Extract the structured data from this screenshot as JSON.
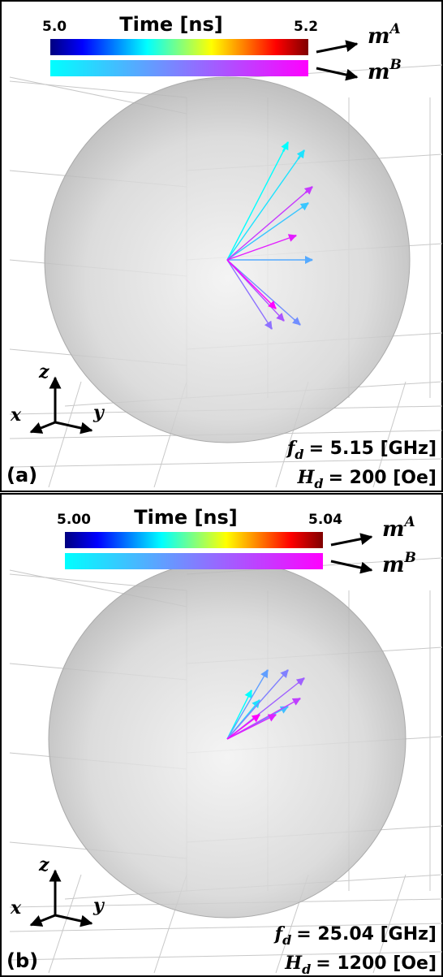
{
  "panels": [
    {
      "label": "(a)",
      "colorbar": {
        "title": "Time [ns]",
        "min": "5.0",
        "max": "5.2"
      },
      "legend": [
        {
          "symbol": "m",
          "superscript": "A"
        },
        {
          "symbol": "m",
          "superscript": "B"
        }
      ],
      "axes": {
        "z": "z",
        "x": "x",
        "y": "y"
      },
      "annotations": [
        {
          "symbol": "f",
          "subscript": "d",
          "text": "= 5.15 [GHz]"
        },
        {
          "symbol": "H",
          "subscript": "d",
          "text": "= 200 [Oe]"
        }
      ]
    },
    {
      "label": "(b)",
      "colorbar": {
        "title": "Time [ns]",
        "min": "5.00",
        "max": "5.04"
      },
      "legend": [
        {
          "symbol": "m",
          "superscript": "A"
        },
        {
          "symbol": "m",
          "superscript": "B"
        }
      ],
      "axes": {
        "z": "z",
        "x": "x",
        "y": "y"
      },
      "annotations": [
        {
          "symbol": "f",
          "subscript": "d",
          "text": "= 25.04 [GHz]"
        },
        {
          "symbol": "H",
          "subscript": "d",
          "text": "= 1200 [Oe]"
        }
      ]
    }
  ]
}
